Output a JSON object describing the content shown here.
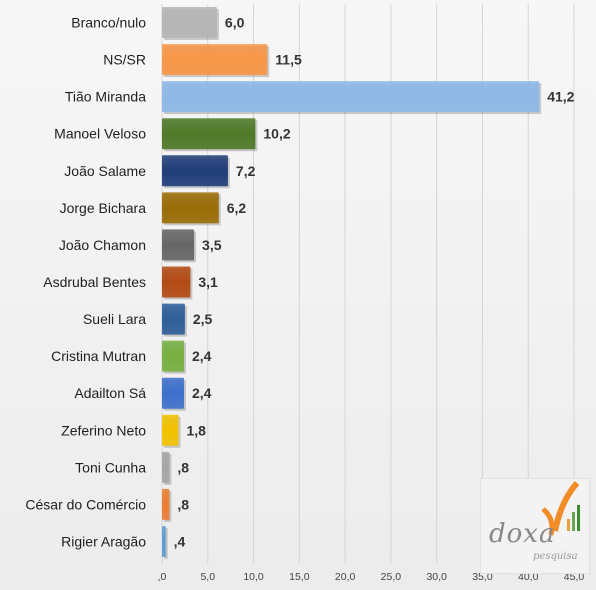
{
  "chart_data": {
    "type": "bar",
    "orientation": "horizontal",
    "categories": [
      "Branco/nulo",
      "NS/SR",
      "Tião Miranda",
      "Manoel Veloso",
      "João Salame",
      "Jorge Bichara",
      "João Chamon",
      "Asdrubal Bentes",
      "Sueli Lara",
      "Cristina Mutran",
      "Adailton Sá",
      "Zeferino Neto",
      "Toni Cunha",
      "César do Comércio",
      "Rigier Aragão"
    ],
    "values": [
      6.0,
      11.5,
      41.2,
      10.2,
      7.2,
      6.2,
      3.5,
      3.1,
      2.5,
      2.4,
      2.4,
      1.8,
      0.8,
      0.8,
      0.4
    ],
    "value_labels": [
      "6,0",
      "11,5",
      "41,2",
      "10,2",
      "7,2",
      "6,2",
      "3,5",
      "3,1",
      "2,5",
      "2,4",
      "2,4",
      "1,8",
      ",8",
      ",8",
      ",4"
    ],
    "colors": [
      "#b5b5b5",
      "#f79646",
      "#8db8e8",
      "#4f7a28",
      "#203d7a",
      "#9a6c06",
      "#666666",
      "#b34a14",
      "#2d5f99",
      "#77b040",
      "#3d70cc",
      "#f2c200",
      "#a5a5a5",
      "#ed7d31",
      "#5b9bd5"
    ],
    "xlim": [
      0,
      45
    ],
    "xticks": [
      0,
      5,
      10,
      15,
      20,
      25,
      30,
      35,
      40,
      45
    ],
    "xtick_labels": [
      ",0",
      "5,0",
      "10,0",
      "15,0",
      "20,0",
      "25,0",
      "30,0",
      "35,0",
      "40,0",
      "45,0"
    ],
    "grid": true,
    "legend": false
  },
  "logo": {
    "name": "doxa",
    "sub": "pesquisa"
  }
}
